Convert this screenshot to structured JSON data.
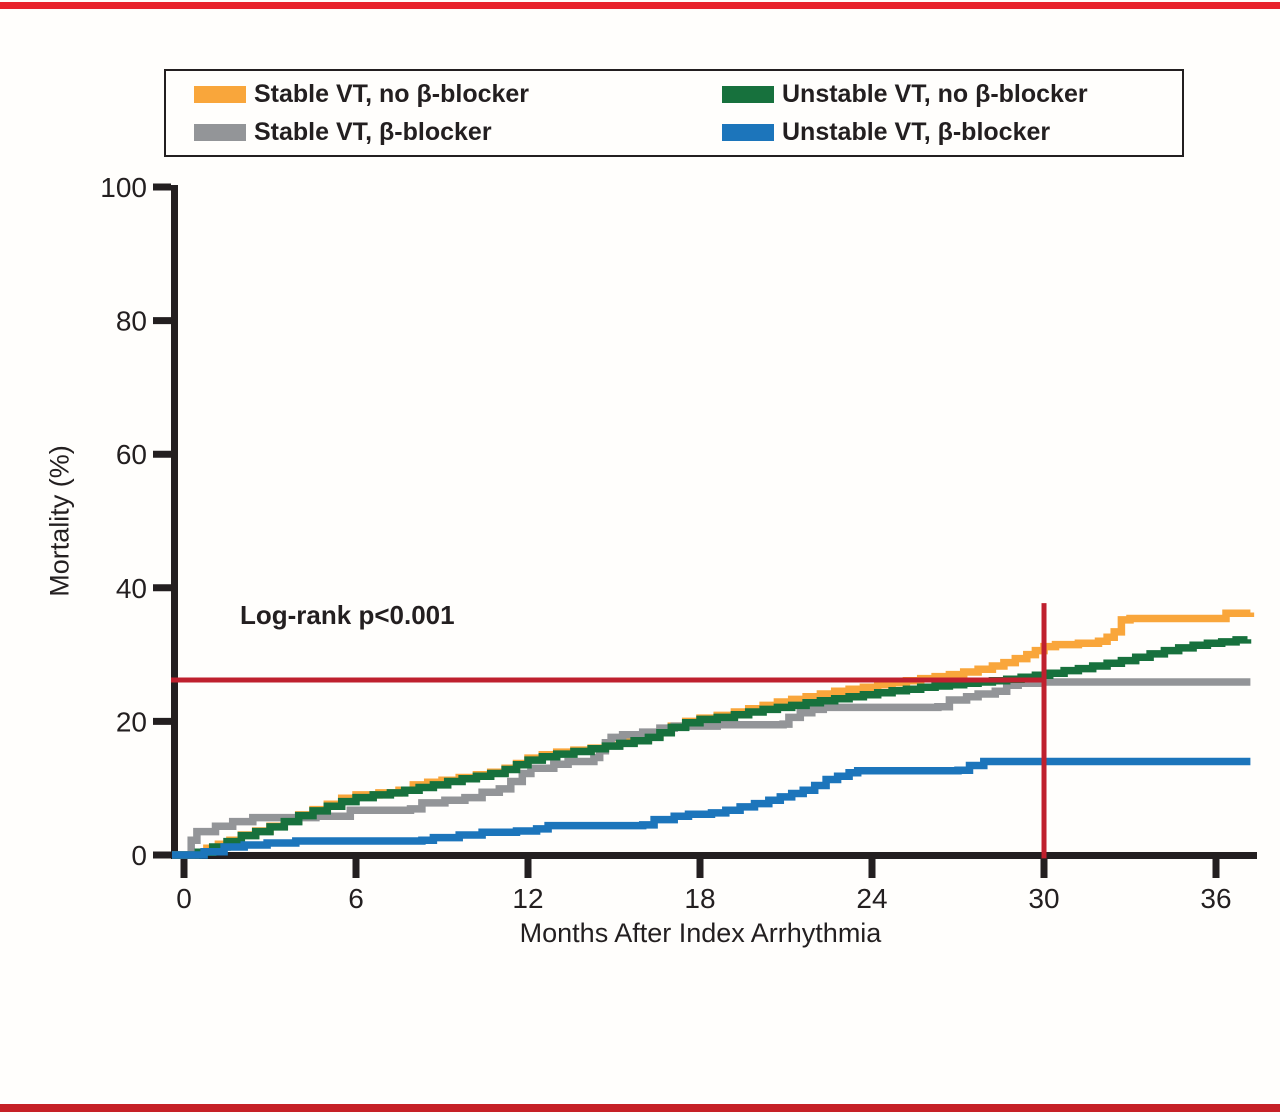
{
  "page": {
    "top_rule_color": "#E8232B",
    "bottom_rule_color": "#C62026",
    "text_color": "#231F20"
  },
  "legend": {
    "items": [
      {
        "label": "Stable VT, no β-blocker",
        "color": "#F9A63B",
        "series": "stable_no_bb"
      },
      {
        "label": "Unstable VT, no β-blocker",
        "color": "#17713D",
        "series": "unstable_no_bb"
      },
      {
        "label": "Stable VT, β-blocker",
        "color": "#939598",
        "series": "stable_bb"
      },
      {
        "label": "Unstable VT, β-blocker",
        "color": "#1C75BB",
        "series": "unstable_bb"
      }
    ]
  },
  "annotation": {
    "log_rank": "Log-rank p<0.001"
  },
  "chart_data": {
    "type": "line",
    "subtype": "kaplan-meier-step",
    "title": "",
    "xlabel": "Months After Index Arrhythmia",
    "ylabel": "Mortality (%)",
    "xlim": [
      0,
      37.4
    ],
    "ylim": [
      0,
      100
    ],
    "x_ticks": [
      0,
      6,
      12,
      18,
      24,
      30,
      36
    ],
    "y_ticks": [
      0,
      20,
      40,
      60,
      80,
      100
    ],
    "grid": false,
    "legend_position": "top",
    "axis_color": "#231F20",
    "reference_lines": {
      "color": "#BF202E",
      "horizontal": {
        "y_pct": 26.2,
        "x_start_month": 0,
        "x_end_month": 30
      },
      "vertical": {
        "x_month": 30,
        "y_start_pct": -0.5,
        "y_end_pct": 37.7
      }
    },
    "series": [
      {
        "name": "Stable VT, no β-blocker",
        "id": "stable_no_bb",
        "color": "#F9A63B",
        "points": [
          [
            0,
            0
          ],
          [
            0.4,
            0.4
          ],
          [
            0.8,
            1.0
          ],
          [
            1.2,
            1.6
          ],
          [
            1.6,
            2.2
          ],
          [
            2.0,
            3.0
          ],
          [
            2.5,
            3.6
          ],
          [
            3.0,
            4.3
          ],
          [
            3.5,
            5.1
          ],
          [
            4.0,
            6.0
          ],
          [
            4.5,
            6.8
          ],
          [
            5.0,
            7.6
          ],
          [
            5.5,
            8.5
          ],
          [
            6.0,
            9.0
          ],
          [
            6.8,
            9.3
          ],
          [
            7.5,
            9.7
          ],
          [
            8.0,
            10.5
          ],
          [
            8.5,
            10.9
          ],
          [
            9.0,
            11.2
          ],
          [
            9.6,
            11.6
          ],
          [
            10.2,
            12.0
          ],
          [
            10.7,
            12.4
          ],
          [
            11.2,
            13.0
          ],
          [
            11.6,
            13.7
          ],
          [
            12.0,
            14.5
          ],
          [
            12.5,
            15.0
          ],
          [
            13.0,
            15.4
          ],
          [
            13.6,
            15.7
          ],
          [
            14.2,
            16.0
          ],
          [
            14.7,
            16.4
          ],
          [
            15.2,
            16.9
          ],
          [
            15.7,
            17.3
          ],
          [
            16.2,
            17.8
          ],
          [
            16.6,
            18.5
          ],
          [
            17.0,
            19.3
          ],
          [
            17.5,
            20.0
          ],
          [
            18.0,
            20.5
          ],
          [
            18.6,
            20.9
          ],
          [
            19.2,
            21.4
          ],
          [
            19.7,
            21.9
          ],
          [
            20.2,
            22.4
          ],
          [
            20.7,
            22.9
          ],
          [
            21.2,
            23.3
          ],
          [
            21.7,
            23.7
          ],
          [
            22.2,
            24.1
          ],
          [
            22.7,
            24.5
          ],
          [
            23.2,
            24.8
          ],
          [
            23.7,
            25.1
          ],
          [
            24.2,
            25.5
          ],
          [
            24.7,
            25.8
          ],
          [
            25.2,
            26.1
          ],
          [
            25.7,
            26.4
          ],
          [
            26.2,
            26.7
          ],
          [
            26.7,
            27.0
          ],
          [
            27.2,
            27.4
          ],
          [
            27.7,
            27.8
          ],
          [
            28.2,
            28.3
          ],
          [
            28.6,
            28.8
          ],
          [
            29.0,
            29.4
          ],
          [
            29.4,
            30.0
          ],
          [
            29.7,
            30.6
          ],
          [
            30.0,
            31.2
          ],
          [
            30.4,
            31.5
          ],
          [
            31.2,
            31.7
          ],
          [
            31.9,
            32.0
          ],
          [
            32.2,
            32.6
          ],
          [
            32.45,
            33.4
          ],
          [
            32.7,
            35.2
          ],
          [
            33.0,
            35.4
          ],
          [
            36.2,
            35.4
          ],
          [
            36.35,
            36.2
          ],
          [
            37.2,
            36.3
          ]
        ]
      },
      {
        "name": "Stable VT, β-blocker",
        "id": "stable_bb",
        "color": "#939598",
        "points": [
          [
            0,
            0
          ],
          [
            0.25,
            2.2
          ],
          [
            0.45,
            3.5
          ],
          [
            1.1,
            4.3
          ],
          [
            1.7,
            5.0
          ],
          [
            2.4,
            5.6
          ],
          [
            4.6,
            5.8
          ],
          [
            5.8,
            6.7
          ],
          [
            7.9,
            6.9
          ],
          [
            8.3,
            7.8
          ],
          [
            9.1,
            8.2
          ],
          [
            9.8,
            8.6
          ],
          [
            10.4,
            9.4
          ],
          [
            11.0,
            9.9
          ],
          [
            11.4,
            11.0
          ],
          [
            11.8,
            12.2
          ],
          [
            12.1,
            13.0
          ],
          [
            12.9,
            13.6
          ],
          [
            13.4,
            14.0
          ],
          [
            14.3,
            14.6
          ],
          [
            14.5,
            15.6
          ],
          [
            14.7,
            16.8
          ],
          [
            14.9,
            17.6
          ],
          [
            15.3,
            18.0
          ],
          [
            16.0,
            18.4
          ],
          [
            16.6,
            19.0
          ],
          [
            17.1,
            19.3
          ],
          [
            18.6,
            19.5
          ],
          [
            20.9,
            19.6
          ],
          [
            21.1,
            20.6
          ],
          [
            21.5,
            21.3
          ],
          [
            21.9,
            21.8
          ],
          [
            22.3,
            22.1
          ],
          [
            26.3,
            22.2
          ],
          [
            26.7,
            23.2
          ],
          [
            27.3,
            23.7
          ],
          [
            27.7,
            24.1
          ],
          [
            28.3,
            24.5
          ],
          [
            28.7,
            25.4
          ],
          [
            29.1,
            25.7
          ],
          [
            29.8,
            25.9
          ],
          [
            37.2,
            25.9
          ]
        ]
      },
      {
        "name": "Unstable VT, no β-blocker",
        "id": "unstable_no_bb",
        "color": "#17713D",
        "points": [
          [
            0,
            0
          ],
          [
            0.5,
            0.4
          ],
          [
            1.0,
            1.2
          ],
          [
            1.5,
            2.0
          ],
          [
            2.0,
            2.9
          ],
          [
            2.5,
            3.5
          ],
          [
            3.0,
            4.2
          ],
          [
            3.5,
            5.0
          ],
          [
            4.0,
            5.9
          ],
          [
            4.5,
            6.6
          ],
          [
            5.0,
            7.3
          ],
          [
            5.5,
            8.0
          ],
          [
            6.0,
            8.6
          ],
          [
            6.6,
            9.0
          ],
          [
            7.2,
            9.3
          ],
          [
            7.7,
            9.7
          ],
          [
            8.2,
            10.1
          ],
          [
            8.7,
            10.5
          ],
          [
            9.2,
            11.0
          ],
          [
            9.7,
            11.4
          ],
          [
            10.2,
            11.8
          ],
          [
            10.7,
            12.2
          ],
          [
            11.2,
            12.8
          ],
          [
            11.6,
            13.5
          ],
          [
            12.0,
            14.2
          ],
          [
            12.5,
            14.7
          ],
          [
            13.0,
            15.1
          ],
          [
            13.6,
            15.5
          ],
          [
            14.2,
            15.9
          ],
          [
            14.7,
            16.3
          ],
          [
            15.2,
            16.7
          ],
          [
            15.7,
            17.1
          ],
          [
            16.2,
            17.6
          ],
          [
            16.6,
            18.3
          ],
          [
            17.0,
            19.1
          ],
          [
            17.5,
            19.8
          ],
          [
            18.0,
            20.3
          ],
          [
            18.6,
            20.6
          ],
          [
            19.2,
            21.0
          ],
          [
            19.7,
            21.4
          ],
          [
            20.2,
            21.8
          ],
          [
            20.7,
            22.1
          ],
          [
            21.2,
            22.4
          ],
          [
            21.7,
            22.8
          ],
          [
            22.2,
            23.1
          ],
          [
            22.7,
            23.4
          ],
          [
            23.2,
            23.7
          ],
          [
            23.7,
            24.0
          ],
          [
            24.2,
            24.3
          ],
          [
            24.7,
            24.6
          ],
          [
            25.2,
            24.8
          ],
          [
            25.7,
            25.1
          ],
          [
            26.2,
            25.3
          ],
          [
            26.7,
            25.5
          ],
          [
            27.2,
            25.7
          ],
          [
            27.7,
            25.9
          ],
          [
            28.2,
            26.1
          ],
          [
            28.7,
            26.3
          ],
          [
            29.2,
            26.6
          ],
          [
            29.7,
            26.9
          ],
          [
            30.2,
            27.2
          ],
          [
            30.7,
            27.6
          ],
          [
            31.2,
            27.9
          ],
          [
            31.7,
            28.3
          ],
          [
            32.2,
            28.7
          ],
          [
            32.7,
            29.1
          ],
          [
            33.2,
            29.6
          ],
          [
            33.7,
            30.1
          ],
          [
            34.2,
            30.6
          ],
          [
            34.7,
            31.0
          ],
          [
            35.2,
            31.4
          ],
          [
            35.7,
            31.7
          ],
          [
            36.2,
            31.9
          ],
          [
            36.7,
            32.2
          ],
          [
            37.1,
            32.3
          ]
        ]
      },
      {
        "name": "Unstable VT, β-blocker",
        "id": "unstable_bb",
        "color": "#1C75BB",
        "points": [
          [
            0,
            0
          ],
          [
            0.7,
            0.5
          ],
          [
            1.4,
            1.2
          ],
          [
            2.1,
            1.5
          ],
          [
            2.9,
            1.8
          ],
          [
            3.9,
            2.1
          ],
          [
            8.3,
            2.2
          ],
          [
            8.7,
            2.6
          ],
          [
            9.6,
            3.0
          ],
          [
            10.4,
            3.4
          ],
          [
            11.6,
            3.6
          ],
          [
            12.3,
            3.9
          ],
          [
            12.7,
            4.4
          ],
          [
            16.0,
            4.5
          ],
          [
            16.4,
            5.3
          ],
          [
            17.1,
            5.8
          ],
          [
            17.6,
            6.1
          ],
          [
            18.4,
            6.3
          ],
          [
            18.9,
            6.7
          ],
          [
            19.4,
            7.2
          ],
          [
            19.9,
            7.7
          ],
          [
            20.4,
            8.2
          ],
          [
            20.8,
            8.7
          ],
          [
            21.2,
            9.2
          ],
          [
            21.6,
            9.7
          ],
          [
            22.0,
            10.4
          ],
          [
            22.4,
            11.3
          ],
          [
            22.8,
            11.8
          ],
          [
            23.2,
            12.3
          ],
          [
            23.5,
            12.6
          ],
          [
            27.0,
            12.7
          ],
          [
            27.4,
            13.4
          ],
          [
            27.9,
            14.0
          ],
          [
            37.2,
            14.0
          ]
        ]
      }
    ]
  }
}
